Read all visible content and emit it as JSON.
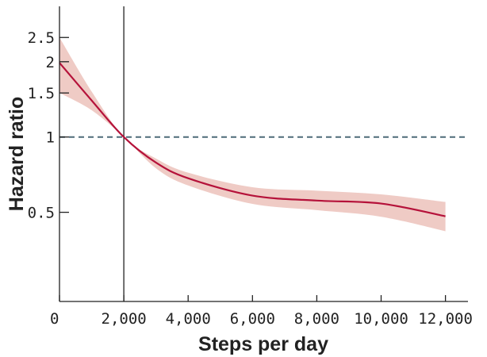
{
  "chart_data": {
    "type": "line",
    "title": "",
    "xlabel": "Steps per day",
    "ylabel": "Hazard ratio",
    "xlim": [
      0,
      12700
    ],
    "ylim": [
      0.22,
      3.33
    ],
    "yscale": "log",
    "grid": false,
    "x_ticks": [
      0,
      2000,
      4000,
      6000,
      8000,
      10000,
      12000
    ],
    "x_tick_labels": [
      "0",
      "2,000",
      "4,000",
      "6,000",
      "8,000",
      "10,000",
      "12,000"
    ],
    "y_ticks": [
      0.5,
      1,
      1.5,
      2,
      2.5
    ],
    "y_tick_labels": [
      "0.5",
      "1",
      "1.5",
      "2",
      "2.5"
    ],
    "reference_line_y": 1,
    "reference_line_x": 2000,
    "series": [
      {
        "x": [
          0,
          1000,
          2000,
          3000,
          4000,
          6000,
          8000,
          10000,
          12000
        ],
        "y": [
          1.98,
          1.4,
          1.0,
          0.79,
          0.684,
          0.583,
          0.557,
          0.542,
          0.482
        ],
        "lower": [
          1.5,
          1.28,
          1.0,
          0.75,
          0.64,
          0.54,
          0.51,
          0.48,
          0.42
        ],
        "upper": [
          2.5,
          1.52,
          1.0,
          0.82,
          0.72,
          0.63,
          0.61,
          0.59,
          0.55
        ]
      }
    ],
    "colors": {
      "line": "#b5123a",
      "band": "#efcbc5",
      "reference": "#4f6b78",
      "axis": "#222222"
    }
  }
}
